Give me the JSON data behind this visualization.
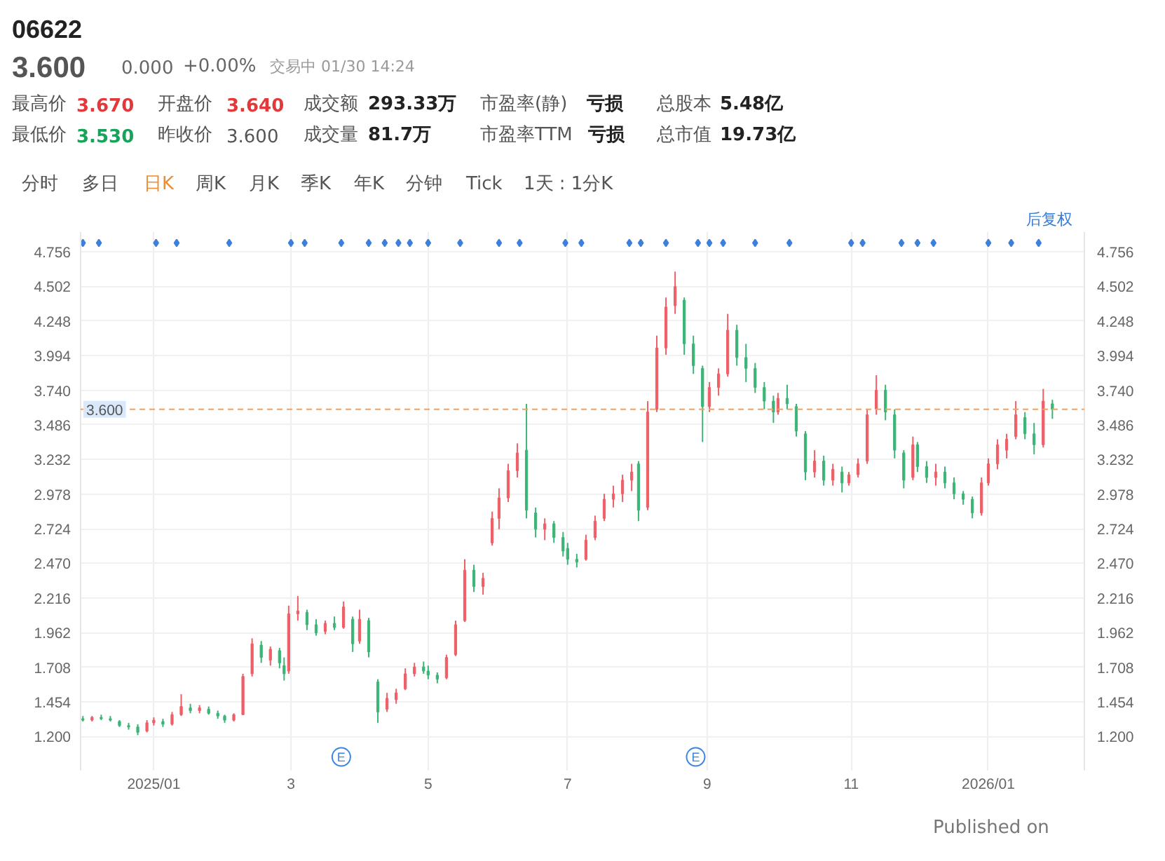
{
  "chart_data": {
    "type": "candlestick",
    "title": "06622",
    "x": [
      "2024-12-02",
      "2024-12-06",
      "2024-12-10",
      "2024-12-14",
      "2024-12-18",
      "2024-12-22",
      "2024-12-26",
      "2024-12-30",
      "2025-01-02",
      "2025-01-06",
      "2025-01-10",
      "2025-01-14",
      "2025-01-18",
      "2025-01-22",
      "2025-01-26",
      "2025-01-30",
      "2025-02-02",
      "2025-02-06",
      "2025-02-10",
      "2025-02-14",
      "2025-02-18",
      "2025-02-22",
      "2025-02-26",
      "2025-02-28",
      "2025-03-02",
      "2025-03-06",
      "2025-03-10",
      "2025-03-14",
      "2025-03-18",
      "2025-03-22",
      "2025-03-26",
      "2025-03-30",
      "2025-04-02",
      "2025-04-06",
      "2025-04-10",
      "2025-04-14",
      "2025-04-18",
      "2025-04-22",
      "2025-04-26",
      "2025-04-30",
      "2025-05-02",
      "2025-05-06",
      "2025-05-10",
      "2025-05-14",
      "2025-05-18",
      "2025-05-22",
      "2025-05-26",
      "2025-05-30",
      "2025-06-02",
      "2025-06-06",
      "2025-06-10",
      "2025-06-14",
      "2025-06-18",
      "2025-06-22",
      "2025-06-26",
      "2025-06-30",
      "2025-07-02",
      "2025-07-06",
      "2025-07-10",
      "2025-07-14",
      "2025-07-18",
      "2025-07-22",
      "2025-07-26",
      "2025-07-30",
      "2025-08-02",
      "2025-08-06",
      "2025-08-10",
      "2025-08-14",
      "2025-08-18",
      "2025-08-22",
      "2025-08-26",
      "2025-08-30",
      "2025-09-02",
      "2025-09-06",
      "2025-09-10",
      "2025-09-14",
      "2025-09-18",
      "2025-09-22",
      "2025-09-26",
      "2025-09-30",
      "2025-10-02",
      "2025-10-06",
      "2025-10-10",
      "2025-10-14",
      "2025-10-18",
      "2025-10-22",
      "2025-10-26",
      "2025-10-30",
      "2025-11-02",
      "2025-11-06",
      "2025-11-10",
      "2025-11-14",
      "2025-11-18",
      "2025-11-22",
      "2025-11-26",
      "2025-11-30",
      "2025-12-02",
      "2025-12-06",
      "2025-12-10",
      "2025-12-14",
      "2025-12-18",
      "2025-12-22",
      "2025-12-26",
      "2025-12-30",
      "2026-01-02",
      "2026-01-06",
      "2026-01-10",
      "2026-01-14",
      "2026-01-18",
      "2026-01-22",
      "2026-01-26",
      "2026-01-30"
    ],
    "ohlc": [
      [
        1.33,
        1.35,
        1.31,
        1.32
      ],
      [
        1.32,
        1.35,
        1.31,
        1.34
      ],
      [
        1.34,
        1.36,
        1.32,
        1.33
      ],
      [
        1.33,
        1.35,
        1.31,
        1.32
      ],
      [
        1.31,
        1.32,
        1.27,
        1.28
      ],
      [
        1.28,
        1.3,
        1.25,
        1.27
      ],
      [
        1.27,
        1.29,
        1.21,
        1.23
      ],
      [
        1.24,
        1.32,
        1.23,
        1.3
      ],
      [
        1.3,
        1.34,
        1.28,
        1.32
      ],
      [
        1.31,
        1.33,
        1.27,
        1.29
      ],
      [
        1.29,
        1.38,
        1.28,
        1.36
      ],
      [
        1.36,
        1.51,
        1.35,
        1.42
      ],
      [
        1.41,
        1.44,
        1.37,
        1.39
      ],
      [
        1.39,
        1.43,
        1.37,
        1.41
      ],
      [
        1.4,
        1.42,
        1.36,
        1.37
      ],
      [
        1.37,
        1.39,
        1.33,
        1.35
      ],
      [
        1.35,
        1.36,
        1.3,
        1.32
      ],
      [
        1.32,
        1.37,
        1.31,
        1.36
      ],
      [
        1.36,
        1.66,
        1.36,
        1.64
      ],
      [
        1.66,
        1.92,
        1.64,
        1.88
      ],
      [
        1.87,
        1.9,
        1.74,
        1.78
      ],
      [
        1.76,
        1.86,
        1.72,
        1.84
      ],
      [
        1.83,
        1.85,
        1.7,
        1.74
      ],
      [
        1.72,
        1.78,
        1.61,
        1.66
      ],
      [
        1.68,
        2.16,
        1.66,
        2.1
      ],
      [
        2.1,
        2.23,
        2.05,
        2.12
      ],
      [
        2.11,
        2.13,
        1.98,
        2.02
      ],
      [
        2.02,
        2.06,
        1.94,
        1.96
      ],
      [
        1.97,
        2.05,
        1.95,
        2.03
      ],
      [
        2.03,
        2.08,
        1.98,
        2.0
      ],
      [
        2.0,
        2.19,
        1.99,
        2.15
      ],
      [
        2.06,
        2.08,
        1.82,
        1.88
      ],
      [
        1.9,
        2.13,
        1.88,
        2.06
      ],
      [
        2.05,
        2.07,
        1.78,
        1.82
      ],
      [
        1.6,
        1.62,
        1.3,
        1.38
      ],
      [
        1.4,
        1.52,
        1.38,
        1.48
      ],
      [
        1.47,
        1.55,
        1.44,
        1.52
      ],
      [
        1.55,
        1.7,
        1.54,
        1.66
      ],
      [
        1.66,
        1.74,
        1.64,
        1.71
      ],
      [
        1.71,
        1.75,
        1.66,
        1.68
      ],
      [
        1.68,
        1.72,
        1.62,
        1.65
      ],
      [
        1.65,
        1.67,
        1.59,
        1.62
      ],
      [
        1.63,
        1.8,
        1.62,
        1.78
      ],
      [
        1.8,
        2.05,
        1.79,
        2.02
      ],
      [
        2.05,
        2.5,
        2.04,
        2.42
      ],
      [
        2.42,
        2.46,
        2.26,
        2.3
      ],
      [
        2.3,
        2.4,
        2.24,
        2.36
      ],
      [
        2.62,
        2.85,
        2.6,
        2.8
      ],
      [
        2.8,
        3.02,
        2.72,
        2.95
      ],
      [
        2.95,
        3.2,
        2.92,
        3.15
      ],
      [
        3.15,
        3.35,
        3.1,
        3.28
      ],
      [
        3.3,
        3.64,
        2.8,
        2.86
      ],
      [
        2.84,
        2.88,
        2.66,
        2.72
      ],
      [
        2.72,
        2.8,
        2.64,
        2.76
      ],
      [
        2.76,
        2.78,
        2.62,
        2.66
      ],
      [
        2.66,
        2.7,
        2.52,
        2.56
      ],
      [
        2.58,
        2.62,
        2.46,
        2.5
      ],
      [
        2.5,
        2.54,
        2.44,
        2.48
      ],
      [
        2.5,
        2.68,
        2.49,
        2.64
      ],
      [
        2.66,
        2.82,
        2.64,
        2.78
      ],
      [
        2.8,
        2.98,
        2.78,
        2.94
      ],
      [
        2.94,
        3.04,
        2.88,
        2.98
      ],
      [
        2.98,
        3.12,
        2.92,
        3.08
      ],
      [
        3.08,
        3.2,
        3.0,
        3.14
      ],
      [
        3.2,
        3.22,
        2.78,
        2.86
      ],
      [
        2.88,
        3.66,
        2.86,
        3.58
      ],
      [
        3.6,
        4.14,
        3.58,
        4.05
      ],
      [
        4.05,
        4.42,
        4.0,
        4.35
      ],
      [
        4.36,
        4.61,
        4.3,
        4.5
      ],
      [
        4.4,
        4.42,
        4.0,
        4.08
      ],
      [
        4.08,
        4.14,
        3.86,
        3.92
      ],
      [
        3.9,
        3.92,
        3.36,
        3.62
      ],
      [
        3.62,
        3.8,
        3.58,
        3.76
      ],
      [
        3.76,
        3.9,
        3.7,
        3.86
      ],
      [
        3.86,
        4.3,
        3.84,
        4.18
      ],
      [
        4.18,
        4.22,
        3.92,
        3.98
      ],
      [
        3.98,
        4.08,
        3.8,
        3.9
      ],
      [
        3.9,
        3.94,
        3.72,
        3.76
      ],
      [
        3.76,
        3.8,
        3.6,
        3.66
      ],
      [
        3.66,
        3.7,
        3.5,
        3.58
      ],
      [
        3.58,
        3.72,
        3.56,
        3.68
      ],
      [
        3.68,
        3.78,
        3.6,
        3.64
      ],
      [
        3.62,
        3.64,
        3.4,
        3.44
      ],
      [
        3.42,
        3.44,
        3.08,
        3.14
      ],
      [
        3.14,
        3.3,
        3.1,
        3.22
      ],
      [
        3.22,
        3.26,
        3.04,
        3.08
      ],
      [
        3.08,
        3.2,
        3.04,
        3.16
      ],
      [
        3.14,
        3.18,
        2.99,
        3.06
      ],
      [
        3.06,
        3.14,
        3.04,
        3.12
      ],
      [
        3.12,
        3.24,
        3.1,
        3.2
      ],
      [
        3.22,
        3.6,
        3.2,
        3.56
      ],
      [
        3.6,
        3.85,
        3.56,
        3.74
      ],
      [
        3.74,
        3.78,
        3.52,
        3.58
      ],
      [
        3.56,
        3.6,
        3.24,
        3.3
      ],
      [
        3.28,
        3.3,
        3.02,
        3.08
      ],
      [
        3.1,
        3.4,
        3.08,
        3.34
      ],
      [
        3.34,
        3.36,
        3.14,
        3.18
      ],
      [
        3.18,
        3.22,
        3.06,
        3.1
      ],
      [
        3.1,
        3.2,
        3.04,
        3.14
      ],
      [
        3.14,
        3.18,
        3.02,
        3.06
      ],
      [
        3.06,
        3.1,
        2.94,
        2.98
      ],
      [
        2.98,
        3.0,
        2.9,
        2.94
      ],
      [
        2.94,
        2.96,
        2.8,
        2.84
      ],
      [
        2.84,
        3.1,
        2.82,
        3.06
      ],
      [
        3.06,
        3.24,
        3.04,
        3.2
      ],
      [
        3.2,
        3.38,
        3.16,
        3.34
      ],
      [
        3.3,
        3.42,
        3.24,
        3.38
      ],
      [
        3.4,
        3.66,
        3.38,
        3.56
      ],
      [
        3.54,
        3.58,
        3.38,
        3.42
      ],
      [
        3.42,
        3.5,
        3.27,
        3.34
      ],
      [
        3.34,
        3.75,
        3.32,
        3.66
      ],
      [
        3.64,
        3.67,
        3.53,
        3.6
      ]
    ],
    "colors": [
      "#3db477",
      "#ee5f68",
      "#3db477",
      "#3db477",
      "#3db477",
      "#3db477",
      "#3db477",
      "#ee5f68",
      "#ee5f68",
      "#3db477",
      "#ee5f68",
      "#ee5f68",
      "#3db477",
      "#ee5f68",
      "#3db477",
      "#3db477",
      "#3db477",
      "#ee5f68",
      "#ee5f68",
      "#ee5f68",
      "#3db477",
      "#ee5f68",
      "#3db477",
      "#3db477",
      "#ee5f68",
      "#ee5f68",
      "#3db477",
      "#3db477",
      "#ee5f68",
      "#3db477",
      "#ee5f68",
      "#3db477",
      "#ee5f68",
      "#3db477",
      "#3db477",
      "#ee5f68",
      "#ee5f68",
      "#ee5f68",
      "#ee5f68",
      "#3db477",
      "#3db477",
      "#3db477",
      "#ee5f68",
      "#ee5f68",
      "#ee5f68",
      "#3db477",
      "#ee5f68",
      "#ee5f68",
      "#ee5f68",
      "#ee5f68",
      "#ee5f68",
      "#3db477",
      "#3db477",
      "#ee5f68",
      "#3db477",
      "#3db477",
      "#3db477",
      "#3db477",
      "#ee5f68",
      "#ee5f68",
      "#ee5f68",
      "#ee5f68",
      "#ee5f68",
      "#ee5f68",
      "#3db477",
      "#ee5f68",
      "#ee5f68",
      "#ee5f68",
      "#ee5f68",
      "#3db477",
      "#3db477",
      "#3db477",
      "#ee5f68",
      "#ee5f68",
      "#ee5f68",
      "#3db477",
      "#3db477",
      "#3db477",
      "#3db477",
      "#3db477",
      "#ee5f68",
      "#3db477",
      "#3db477",
      "#3db477",
      "#ee5f68",
      "#3db477",
      "#ee5f68",
      "#3db477",
      "#ee5f68",
      "#ee5f68",
      "#ee5f68",
      "#ee5f68",
      "#3db477",
      "#3db477",
      "#3db477",
      "#ee5f68",
      "#3db477",
      "#3db477",
      "#ee5f68",
      "#3db477",
      "#3db477",
      "#3db477",
      "#3db477",
      "#ee5f68",
      "#ee5f68",
      "#ee5f68",
      "#ee5f68",
      "#ee5f68",
      "#3db477",
      "#3db477",
      "#ee5f68",
      "#3db477"
    ],
    "series": [
      {
        "type": "scatter",
        "color": "#3d80dc",
        "marker": "diamond",
        "x": [
          "2024-12-02",
          "2024-12-09",
          "2025-01-03",
          "2025-01-12",
          "2025-02-04",
          "2025-03-03",
          "2025-03-09",
          "2025-03-25",
          "2025-04-06",
          "2025-04-13",
          "2025-04-19",
          "2025-04-24",
          "2025-05-02",
          "2025-05-16",
          "2025-06-02",
          "2025-06-11",
          "2025-07-01",
          "2025-07-08",
          "2025-07-29",
          "2025-08-03",
          "2025-08-14",
          "2025-08-28",
          "2025-09-02",
          "2025-09-08",
          "2025-09-22",
          "2025-10-07",
          "2025-11-03",
          "2025-11-08",
          "2025-11-25",
          "2025-12-02",
          "2025-12-09",
          "2026-01-02",
          "2026-01-12",
          "2026-01-24"
        ],
        "values": [
          4.82,
          4.82,
          4.82,
          4.82,
          4.82,
          4.82,
          4.82,
          4.82,
          4.82,
          4.82,
          4.82,
          4.82,
          4.82,
          4.82,
          4.82,
          4.82,
          4.82,
          4.82,
          4.82,
          4.82,
          4.82,
          4.82,
          4.82,
          4.82,
          4.82,
          4.82,
          4.82,
          4.82,
          4.82,
          4.82,
          4.82,
          4.82,
          4.82,
          4.82
        ]
      }
    ],
    "xlim": [
      "2024-12-01",
      "2026-02-13"
    ],
    "xticks": [
      {
        "value": "2025-01-02",
        "label": "2025/01"
      },
      {
        "value": "2025-03-03",
        "label": "3"
      },
      {
        "value": "2025-05-02",
        "label": "5"
      },
      {
        "value": "2025-07-02",
        "label": "7"
      },
      {
        "value": "2025-09-01",
        "label": "9"
      },
      {
        "value": "2025-11-03",
        "label": "11"
      },
      {
        "value": "2026-01-02",
        "label": "2026/01"
      }
    ],
    "ylim": [
      0.95,
      4.9
    ],
    "yticks": [
      {
        "value": 1.2,
        "label": "1.200"
      },
      1.454,
      1.708,
      1.962,
      2.216,
      {
        "value": 2.47,
        "label": "2.470"
      },
      2.724,
      2.978,
      3.232,
      3.486,
      {
        "value": 3.74,
        "label": "3.740"
      },
      3.994,
      4.248,
      4.502,
      4.756
    ],
    "y2lim": [
      0.95,
      4.9
    ],
    "y2ticks": [
      {
        "value": 1.2,
        "label": "1.200"
      },
      1.454,
      1.708,
      1.962,
      2.216,
      {
        "value": 2.47,
        "label": "2.470"
      },
      2.724,
      2.978,
      3.232,
      3.486,
      {
        "value": 3.74,
        "label": "3.740"
      },
      3.994,
      4.248,
      4.502,
      4.756
    ],
    "grid": true,
    "ref_lines": [
      {
        "axis": "y",
        "value": 3.6,
        "label": "3.600",
        "color": "#f5a35c",
        "line_style": "dashed"
      }
    ],
    "annotations": [
      "3.600",
      "0.000",
      "+0.00%",
      "交易中 01/30 14:24",
      "最高价",
      "3.670",
      "开盘价",
      "3.640",
      "成交额",
      "293.33万",
      "市盈率(静)",
      "亏损",
      "总股本",
      "5.48亿",
      "最低价",
      "3.530",
      "昨收价",
      "3.600",
      "成交量",
      "81.7万",
      "市盈率TTM",
      "亏损",
      "总市值",
      "19.73亿",
      "分时",
      "多日",
      "日K",
      "周K",
      "月K",
      "季K",
      "年K",
      "分钟",
      "Tick",
      "1天 : 1分K",
      "后复权",
      "Published on",
      {
        "text": "E",
        "x": "2025-03-25",
        "y": 1.05
      },
      {
        "text": "E",
        "x": "2025-08-27",
        "y": 1.05
      }
    ]
  }
}
